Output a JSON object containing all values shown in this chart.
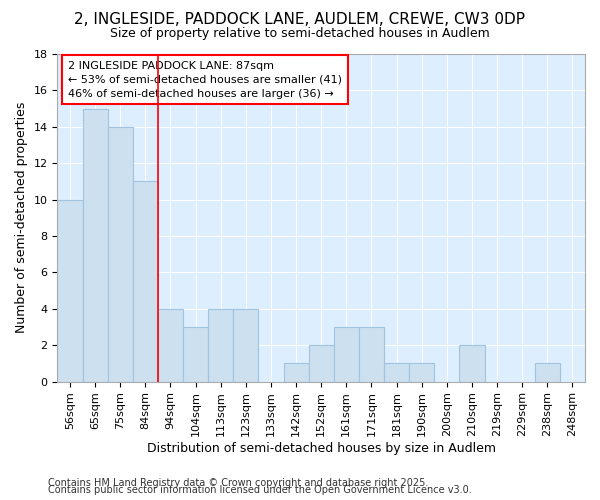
{
  "title": "2, INGLESIDE, PADDOCK LANE, AUDLEM, CREWE, CW3 0DP",
  "subtitle": "Size of property relative to semi-detached houses in Audlem",
  "xlabel": "Distribution of semi-detached houses by size in Audlem",
  "ylabel": "Number of semi-detached properties",
  "bar_color": "#cce0f0",
  "bar_edge_color": "#a0c4e0",
  "background_color": "#ddeeff",
  "grid_color": "#ffffff",
  "categories": [
    "56sqm",
    "65sqm",
    "75sqm",
    "84sqm",
    "94sqm",
    "104sqm",
    "113sqm",
    "123sqm",
    "133sqm",
    "142sqm",
    "152sqm",
    "161sqm",
    "171sqm",
    "181sqm",
    "190sqm",
    "200sqm",
    "210sqm",
    "219sqm",
    "229sqm",
    "238sqm",
    "248sqm"
  ],
  "values": [
    10,
    15,
    14,
    11,
    4,
    3,
    4,
    4,
    0,
    1,
    2,
    3,
    3,
    1,
    1,
    0,
    2,
    0,
    0,
    1,
    0
  ],
  "ylim": [
    0,
    18
  ],
  "red_line_bin": 3,
  "annotation_text": "2 INGLESIDE PADDOCK LANE: 87sqm\n← 53% of semi-detached houses are smaller (41)\n46% of semi-detached houses are larger (36) →",
  "footnote1": "Contains HM Land Registry data © Crown copyright and database right 2025.",
  "footnote2": "Contains public sector information licensed under the Open Government Licence v3.0.",
  "title_fontsize": 11,
  "subtitle_fontsize": 9,
  "xlabel_fontsize": 9,
  "ylabel_fontsize": 9,
  "tick_fontsize": 8,
  "annotation_fontsize": 8,
  "footnote_fontsize": 7
}
